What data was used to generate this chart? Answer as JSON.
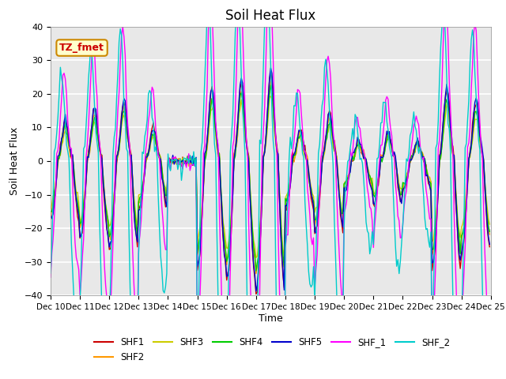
{
  "title": "Soil Heat Flux",
  "xlabel": "Time",
  "ylabel": "Soil Heat Flux",
  "ylim": [
    -40,
    40
  ],
  "yticks": [
    -40,
    -30,
    -20,
    -10,
    0,
    10,
    20,
    30,
    40
  ],
  "xlim": [
    0,
    360
  ],
  "xtick_positions": [
    0,
    24,
    48,
    72,
    96,
    120,
    144,
    168,
    192,
    216,
    240,
    264,
    288,
    312,
    336,
    360
  ],
  "xtick_labels": [
    "Dec 10",
    "Dec 11",
    "Dec 12",
    "Dec 13",
    "Dec 14",
    "Dec 15",
    "Dec 16",
    "Dec 17",
    "Dec 18",
    "Dec 19",
    "Dec 20",
    "Dec 21",
    "Dec 22",
    "Dec 23",
    "Dec 24",
    "Dec 25"
  ],
  "series_colors": {
    "SHF1": "#cc0000",
    "SHF2": "#ff9900",
    "SHF3": "#cccc00",
    "SHF4": "#00cc00",
    "SHF5": "#0000cc",
    "SHF_1": "#ff00ff",
    "SHF_2": "#00cccc"
  },
  "annotation_text": "TZ_fmet",
  "annotation_color": "#cc0000",
  "annotation_bg": "#ffffcc",
  "annotation_border": "#cc8800",
  "plot_bg": "#e8e8e8",
  "fig_bg": "#ffffff",
  "grid_color": "#ffffff",
  "title_fontsize": 12,
  "figsize": [
    6.4,
    4.8
  ],
  "dpi": 100
}
